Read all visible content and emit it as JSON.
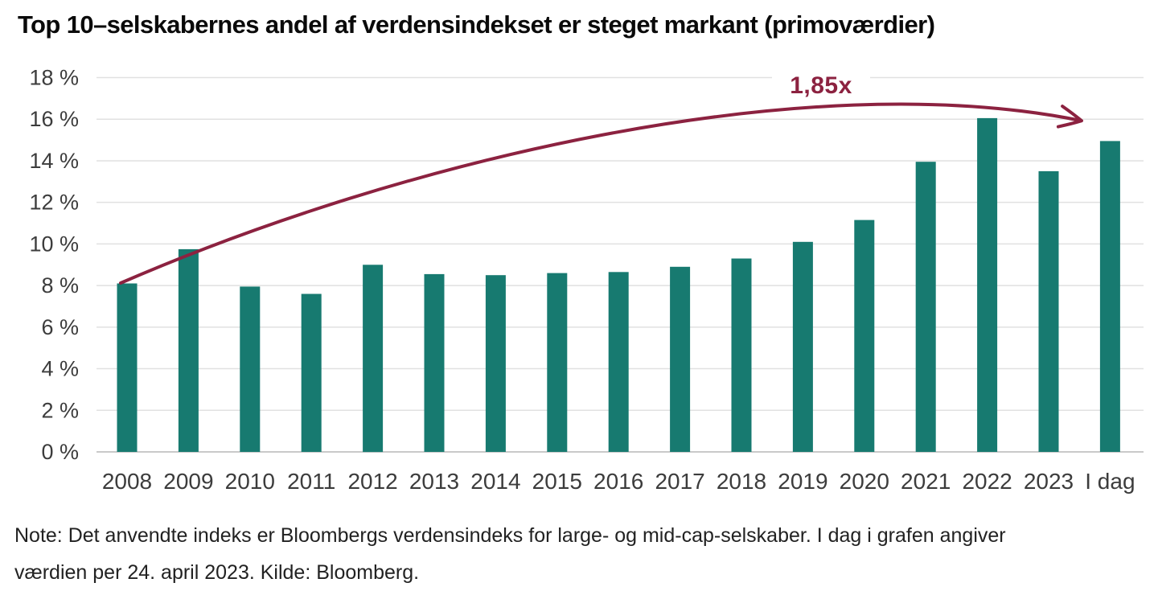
{
  "chart_data": {
    "type": "bar",
    "title": "Top 10–selskabernes andel af verdensindekset er steget markant (primoværdier)",
    "categories": [
      "2008",
      "2009",
      "2010",
      "2011",
      "2012",
      "2013",
      "2014",
      "2015",
      "2016",
      "2017",
      "2018",
      "2019",
      "2020",
      "2021",
      "2022",
      "2023",
      "I dag"
    ],
    "values": [
      8.1,
      9.75,
      7.95,
      7.6,
      9.0,
      8.55,
      8.5,
      8.6,
      8.65,
      8.9,
      9.3,
      10.1,
      11.15,
      13.95,
      16.05,
      13.5,
      14.95
    ],
    "xlabel": "",
    "ylabel": "",
    "ylim": [
      0,
      18
    ],
    "yticks": [
      0,
      2,
      4,
      6,
      8,
      10,
      12,
      14,
      16,
      18
    ],
    "ytick_labels": [
      "0 %",
      "2 %",
      "4 %",
      "6 %",
      "8 %",
      "10 %",
      "12 %",
      "14 %",
      "16 %",
      "18 %"
    ],
    "grid": true,
    "legend": false,
    "annotation": {
      "label": "1,85x",
      "shape": "curved-arrow",
      "from_category": "2008",
      "to_category": "I dag"
    },
    "colors": {
      "bar": "#177A70",
      "annotation": "#8C2240",
      "axis_text": "#3C3C3C",
      "gridline": "#E1E1E1",
      "baseline": "#C9C9C9",
      "background": "#FFFFFF"
    }
  },
  "note": {
    "lines": [
      "Note: Det anvendte indeks er Bloombergs verdensindeks for large- og mid-cap-selskaber. I dag i grafen angiver",
      "værdien per 24. april 2023. Kilde: Bloomberg."
    ]
  }
}
